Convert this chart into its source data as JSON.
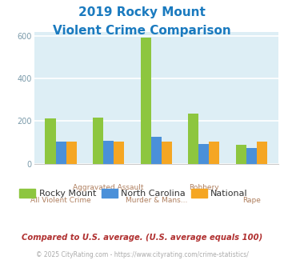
{
  "title_line1": "2019 Rocky Mount",
  "title_line2": "Violent Crime Comparison",
  "title_color": "#1a7abf",
  "cat_top": [
    "",
    "Aggravated Assault",
    "",
    "Robbery",
    ""
  ],
  "cat_bot": [
    "All Violent Crime",
    "",
    "Murder & Mans...",
    "",
    "Rape"
  ],
  "rocky_mount": [
    213,
    217,
    593,
    237,
    88
  ],
  "north_carolina": [
    103,
    107,
    125,
    93,
    75
  ],
  "national": [
    102,
    103,
    103,
    103,
    103
  ],
  "bar_colors": {
    "rocky_mount": "#8dc63f",
    "north_carolina": "#4a90d9",
    "national": "#f5a623"
  },
  "ylim": [
    0,
    620
  ],
  "yticks": [
    0,
    200,
    400,
    600
  ],
  "plot_bg": "#ddeef5",
  "grid_color": "#ffffff",
  "legend_labels": [
    "Rocky Mount",
    "North Carolina",
    "National"
  ],
  "footnote1": "Compared to U.S. average. (U.S. average equals 100)",
  "footnote2": "© 2025 CityRating.com - https://www.cityrating.com/crime-statistics/",
  "footnote1_color": "#b03030",
  "footnote2_color": "#aaaaaa",
  "footnote2_link_color": "#4a90d9",
  "xlabel_color": "#b08060",
  "tick_color": "#7a9aaa",
  "bar_width": 0.22
}
